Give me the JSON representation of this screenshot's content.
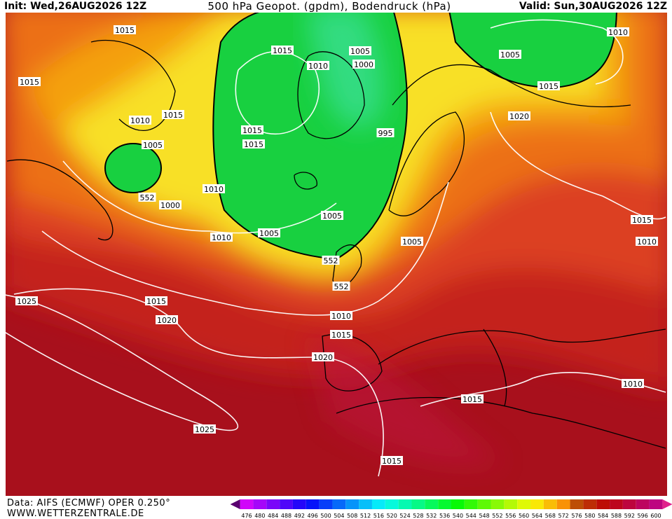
{
  "header": {
    "init": "Init: Wed,26AUG2026 12Z",
    "title": "500 hPa Geopot. (gpdm), Bodendruck (hPa)",
    "valid": "Valid: Sun,30AUG2026 12Z"
  },
  "isobar_labels": [
    "1015",
    "1015",
    "1015",
    "1015",
    "1010",
    "1005",
    "552",
    "1000",
    "1010",
    "1015",
    "1015",
    "1010",
    "1005",
    "1000",
    "995",
    "1005",
    "1010",
    "1015",
    "1020",
    "1010",
    "1005",
    "1005",
    "552",
    "552",
    "1005",
    "1015",
    "1010",
    "1025",
    "1015",
    "1020",
    "1010",
    "1015",
    "1020",
    "1010",
    "1015",
    "1025",
    "1015"
  ],
  "colorbar": {
    "labels": [
      476,
      480,
      484,
      488,
      492,
      496,
      500,
      504,
      508,
      512,
      516,
      520,
      524,
      528,
      532,
      536,
      540,
      544,
      548,
      552,
      556,
      560,
      564,
      568,
      572,
      576,
      580,
      584,
      588,
      592,
      596,
      600
    ]
  },
  "footer": {
    "source": "Data: AIFS (ECMWF) OPER 0.250°",
    "site": "WWW.WETTERZENTRALE.DE"
  }
}
